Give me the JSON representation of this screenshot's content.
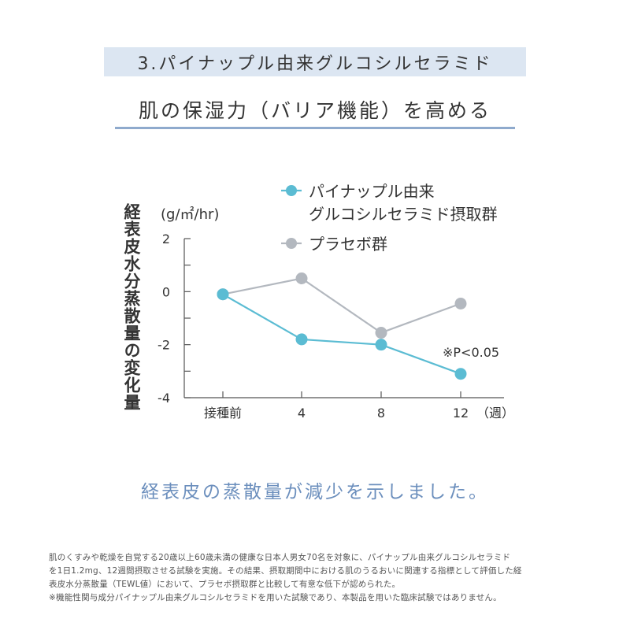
{
  "header": {
    "section_title": "3.パイナップル由来グルコシルセラミド",
    "headline": "肌の保湿力（バリア機能）を高める"
  },
  "chart_data": {
    "type": "line",
    "ylabel": "経表皮水分蒸散量の変化量",
    "yunit": "(g/㎡/hr)",
    "xunit": "（週）",
    "categories": [
      "接種前",
      "4",
      "8",
      "12"
    ],
    "ylim": [
      -4,
      2
    ],
    "yticks": [
      2,
      0,
      -2,
      -4
    ],
    "series": [
      {
        "name": "パイナップル由来グルコシルセラミド摂取群",
        "legend_lines": [
          "パイナップル由来",
          "グルコシルセラミド摂取群"
        ],
        "color": "#5bbcd3",
        "values": [
          -0.1,
          -1.8,
          -2.0,
          -3.1
        ]
      },
      {
        "name": "プラセボ群",
        "legend_lines": [
          "プラセボ群"
        ],
        "color": "#b3b8bf",
        "values": [
          -0.1,
          0.5,
          -1.55,
          -0.45
        ]
      }
    ],
    "annotation": "※P<0.05",
    "grid": false,
    "legend_position": "top-right"
  },
  "caption": "経表皮の蒸散量が減少を示しました。",
  "footnote": [
    "肌のくすみや乾燥を自覚する20歳以上60歳未満の健康な日本人男女70名を対象に、パイナップル由来グルコシルセラミド",
    "を1日1.2mg、12週間摂取させる試験を実施。その結果、摂取期間中における肌のうるおいに関連する指標として評価した経",
    "表皮水分蒸散量（TEWL値）において、プラセボ摂取群と比較して有意な低下が認められた。",
    "※機能性関与成分パイナップル由来グルコシルセラミドを用いた試験であり、本製品を用いた臨床試験ではありません。"
  ]
}
